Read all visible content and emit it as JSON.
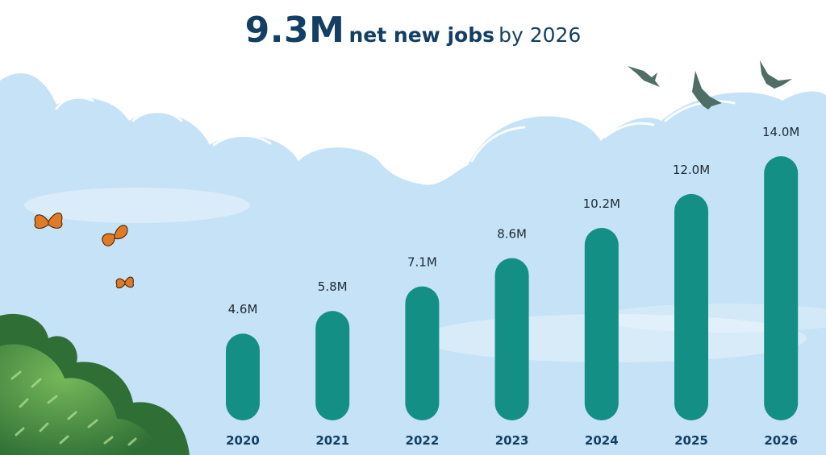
{
  "title": {
    "highlight": "9.3M",
    "emphasis": "net new jobs",
    "rest": "by 2026"
  },
  "colors": {
    "bar": "#138f85",
    "title": "#123f63",
    "sky": "#c6e2f6",
    "butterfly": "#e07a24",
    "foliage": "#3f8a3c"
  },
  "chart_data": {
    "type": "bar",
    "categories": [
      "2020",
      "2021",
      "2022",
      "2023",
      "2024",
      "2025",
      "2026"
    ],
    "values": [
      4.6,
      5.8,
      7.1,
      8.6,
      10.2,
      12.0,
      14.0
    ],
    "value_labels": [
      "4.6M",
      "5.8M",
      "7.1M",
      "8.6M",
      "10.2M",
      "12.0M",
      "14.0M"
    ],
    "ylim": [
      0,
      14.0
    ],
    "grid": false,
    "legend": "none"
  }
}
